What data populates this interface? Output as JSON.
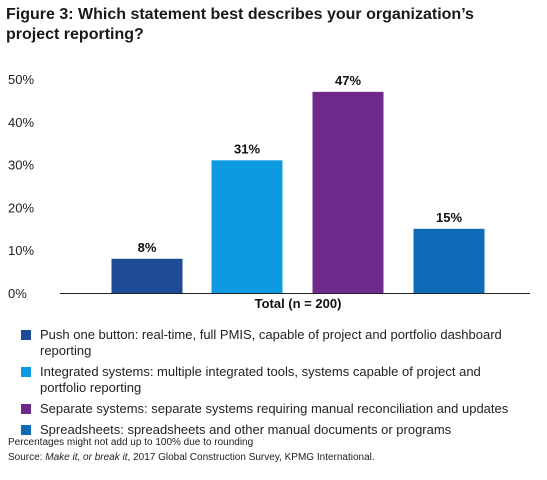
{
  "title_lines": [
    "Figure 3: Which statement best describes your organization’s",
    "project reporting?"
  ],
  "chart_data": {
    "type": "bar",
    "title": "Figure 3: Which statement best describes your organization’s project reporting?",
    "xlabel": "Total (n = 200)",
    "ylabel": "",
    "ylim": [
      0,
      50
    ],
    "yticks": [
      "0%",
      "10%",
      "20%",
      "30%",
      "40%",
      "50%"
    ],
    "ytick_values": [
      0,
      10,
      20,
      30,
      40,
      50
    ],
    "grid": false,
    "categories": [
      "Push one button: real-time, full PMIS, capable of project and portfolio dashboard reporting",
      "Integrated systems: multiple integrated tools, systems capable of project and portfolio reporting",
      "Separate systems: separate systems requiring manual reconciliation and updates",
      "Spreadsheets: spreadsheets and other manual documents or programs"
    ],
    "values": [
      8,
      31,
      47,
      15
    ],
    "value_labels": [
      "8%",
      "31%",
      "47%",
      "15%"
    ],
    "colors": [
      "#1e4b96",
      "#0c9be0",
      "#6d2a8a",
      "#0e6bb8"
    ],
    "legend_position": "bottom"
  },
  "legend": [
    {
      "color": "#1e4b96",
      "lines": [
        "Push one button: real-time, full PMIS, capable of project and portfolio dashboard",
        "reporting"
      ]
    },
    {
      "color": "#0c9be0",
      "lines": [
        "Integrated systems: multiple integrated tools, systems capable of project and",
        "portfolio reporting"
      ]
    },
    {
      "color": "#6d2a8a",
      "lines": [
        "Separate systems: separate systems requiring manual reconciliation and updates"
      ]
    },
    {
      "color": "#0e6bb8",
      "lines": [
        "Spreadsheets: spreadsheets and other manual documents or programs"
      ]
    }
  ],
  "notes": {
    "rounding": "Percentages might not add up to 100% due to rounding",
    "source_prefix": "Source: ",
    "source_title": "Make it, or break it",
    "source_rest": ", 2017 Global Construction Survey, KPMG International."
  }
}
